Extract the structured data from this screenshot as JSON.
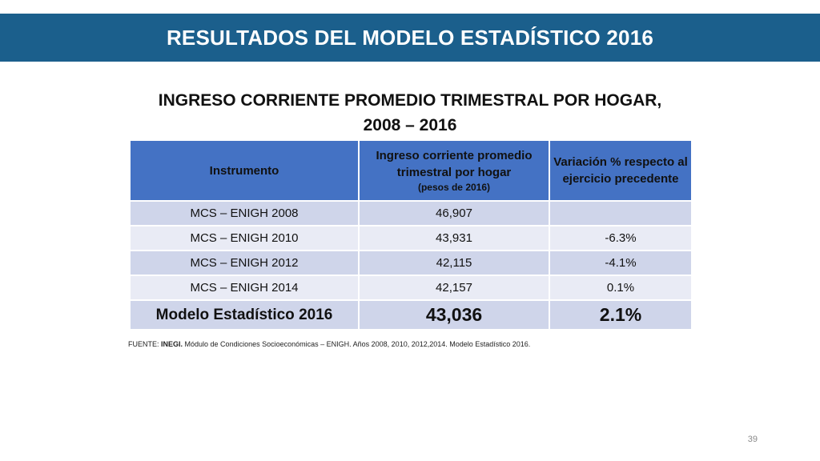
{
  "slide": {
    "title": "RESULTADOS DEL MODELO ESTADÍSTICO 2016",
    "subtitle_line1": "INGRESO CORRIENTE PROMEDIO TRIMESTRAL POR HOGAR,",
    "subtitle_line2": "2008 – 2016",
    "page_number": "39"
  },
  "table": {
    "headers": {
      "instrument": "Instrumento",
      "income": "Ingreso corriente promedio trimestral por hogar",
      "income_unit": "(pesos de 2016)",
      "variation": "Variación % respecto al ejercicio precedente"
    },
    "rows": [
      {
        "instrument": "MCS – ENIGH 2008",
        "income": "46,907",
        "variation": ""
      },
      {
        "instrument": "MCS – ENIGH 2010",
        "income": "43,931",
        "variation": "-6.3%"
      },
      {
        "instrument": "MCS – ENIGH 2012",
        "income": "42,115",
        "variation": "-4.1%"
      },
      {
        "instrument": "MCS – ENIGH 2014",
        "income": "42,157",
        "variation": "0.1%"
      }
    ],
    "total": {
      "instrument": "Modelo Estadístico 2016",
      "income": "43,036",
      "variation": "2.1%"
    }
  },
  "source": {
    "label": "FUENTE: ",
    "org": "INEGI.",
    "text": " Módulo de Condiciones Socioeconómicas – ENIGH. Años 2008, 2010, 2012,2014. Modelo Estadístico 2016."
  }
}
